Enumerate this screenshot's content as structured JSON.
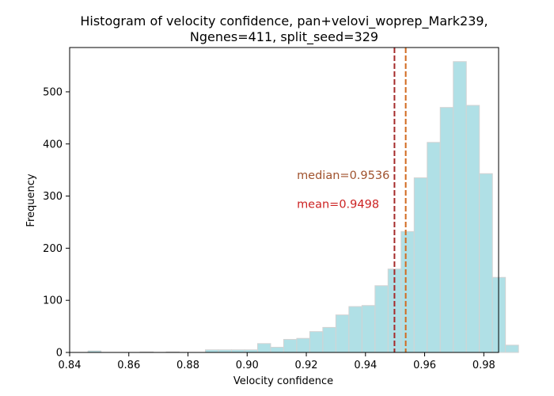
{
  "chart_data": {
    "type": "bar",
    "title_lines": [
      "Histogram of velocity confidence, pan+velovi_woprep_Mark239,",
      "Ngenes=411, split_seed=329"
    ],
    "xlabel": "Velocity confidence",
    "ylabel": "Frequency",
    "xlim": [
      0.84,
      0.985
    ],
    "ylim": [
      0,
      585
    ],
    "xticks": [
      0.84,
      0.86,
      0.88,
      0.9,
      0.92,
      0.94,
      0.96,
      0.98
    ],
    "xtick_labels": [
      "0.84",
      "0.86",
      "0.88",
      "0.90",
      "0.92",
      "0.94",
      "0.96",
      "0.98"
    ],
    "yticks": [
      0,
      100,
      200,
      300,
      400,
      500
    ],
    "ytick_labels": [
      "0",
      "100",
      "200",
      "300",
      "400",
      "500"
    ],
    "bin_start": 0.8462,
    "bin_width": 0.00441,
    "counts": [
      3,
      0,
      0,
      0,
      1,
      0,
      1,
      0,
      0,
      5,
      5,
      5,
      5,
      17,
      10,
      25,
      27,
      40,
      48,
      72,
      88,
      90,
      128,
      160,
      232,
      335,
      403,
      470,
      558,
      474,
      343,
      144,
      14
    ],
    "bar_color": "#b0e0e6",
    "bar_edge_color": "#d3d3d3",
    "mean": 0.9498,
    "median": 0.9536,
    "mean_color": "#a52a2a",
    "median_color": "#d2691e",
    "median_label": "median=0.9536",
    "mean_label": "mean=0.9498",
    "median_text_color": "#a0522d",
    "mean_text_color": "#cc2222",
    "grid": false
  }
}
